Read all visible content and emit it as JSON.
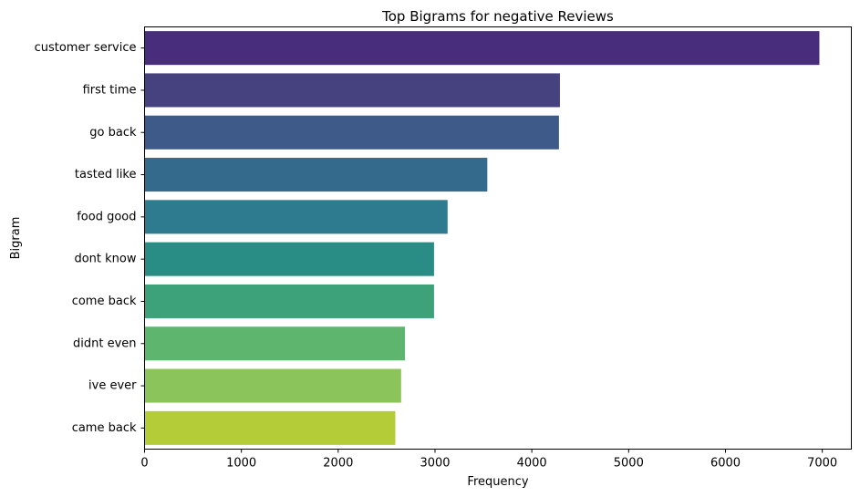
{
  "chart_data": {
    "type": "bar",
    "orientation": "horizontal",
    "title": "Top Bigrams for negative Reviews",
    "xlabel": "Frequency",
    "ylabel": "Bigram",
    "xlim": [
      0,
      7300
    ],
    "xticks": [
      0,
      1000,
      2000,
      3000,
      4000,
      5000,
      6000,
      7000
    ],
    "grid": false,
    "palette": "viridis",
    "categories": [
      "customer service",
      "first time",
      "go back",
      "tasted like",
      "food good",
      "dont know",
      "come back",
      "didnt even",
      "ive ever",
      "came back"
    ],
    "values": [
      6970,
      4290,
      4280,
      3540,
      3130,
      2990,
      2990,
      2690,
      2650,
      2590
    ],
    "colors": [
      "#472d7b",
      "#46417f",
      "#3e5a89",
      "#346a8c",
      "#2e7a8e",
      "#2a8d85",
      "#3da179",
      "#5eb56e",
      "#8ac45a",
      "#b3cc37"
    ]
  }
}
